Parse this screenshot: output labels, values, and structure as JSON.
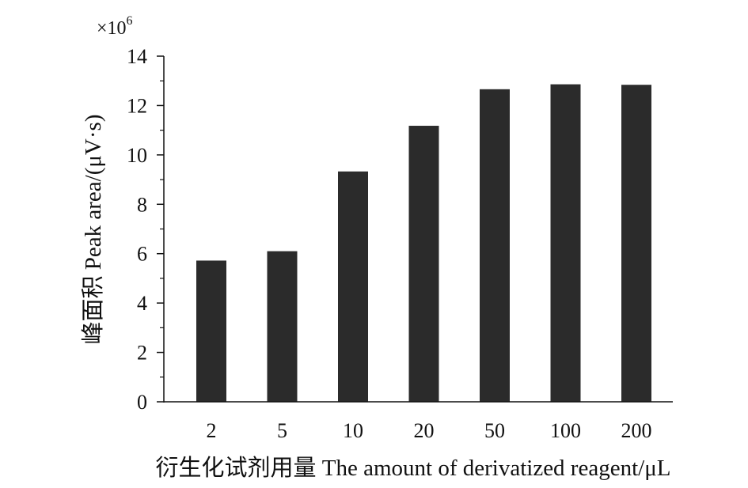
{
  "chart_data": {
    "type": "bar",
    "categories": [
      "2",
      "5",
      "10",
      "20",
      "50",
      "100",
      "200"
    ],
    "values": [
      5.72,
      6.1,
      9.33,
      11.18,
      12.66,
      12.86,
      12.84
    ],
    "title": "",
    "xlabel": "衍生化试剂用量 The amount of derivatized reagent/μL",
    "ylabel": "峰面积 Peak area/(μV·s)",
    "y_multiplier_base": "×10",
    "y_multiplier_exponent": "6",
    "ylim": [
      0,
      14
    ],
    "y_ticks": [
      "0",
      "2",
      "4",
      "6",
      "8",
      "10",
      "12",
      "14"
    ],
    "grid": false,
    "legend": "none",
    "bar_color": "#2b2b2b"
  }
}
